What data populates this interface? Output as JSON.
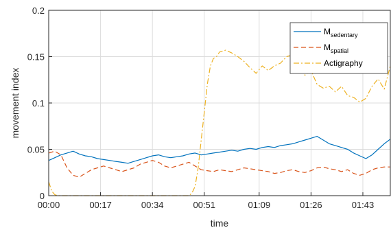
{
  "chart_data": {
    "type": "line",
    "xlabel": "time",
    "ylabel": "movement index",
    "x_ticks": [
      "00:00",
      "00:17",
      "00:34",
      "00:51",
      "01:09",
      "01:26",
      "01:43"
    ],
    "x_tick_minutes": [
      0,
      17,
      34,
      51,
      69,
      86,
      103
    ],
    "xlim_minutes": [
      0,
      112
    ],
    "ylim": [
      0,
      0.2
    ],
    "y_ticks": [
      0,
      0.05,
      0.1,
      0.15,
      0.2
    ],
    "y_tick_labels": [
      "0",
      "0.05",
      "0.1",
      "0.15",
      "0.2"
    ],
    "grid": true,
    "legend_position": "top-right",
    "colors": {
      "sedentary": "#0072BD",
      "spatial": "#D95319",
      "actigraphy": "#EDB120"
    },
    "series": [
      {
        "name": "M",
        "name_sub": "sedentary",
        "key": "sedentary",
        "style": "solid",
        "x": [
          0,
          2,
          4,
          6,
          8,
          10,
          12,
          14,
          16,
          18,
          20,
          22,
          24,
          26,
          28,
          30,
          32,
          34,
          36,
          38,
          40,
          42,
          44,
          46,
          48,
          50,
          52,
          54,
          56,
          58,
          60,
          62,
          64,
          66,
          68,
          70,
          72,
          74,
          76,
          78,
          80,
          82,
          84,
          86,
          88,
          90,
          92,
          94,
          96,
          98,
          100,
          102,
          104,
          106,
          108,
          110,
          112
        ],
        "y": [
          0.038,
          0.041,
          0.044,
          0.046,
          0.048,
          0.045,
          0.043,
          0.042,
          0.04,
          0.039,
          0.038,
          0.037,
          0.036,
          0.035,
          0.037,
          0.039,
          0.041,
          0.043,
          0.044,
          0.042,
          0.041,
          0.042,
          0.043,
          0.045,
          0.046,
          0.044,
          0.045,
          0.046,
          0.047,
          0.048,
          0.049,
          0.048,
          0.05,
          0.051,
          0.05,
          0.052,
          0.053,
          0.052,
          0.054,
          0.055,
          0.056,
          0.058,
          0.06,
          0.062,
          0.064,
          0.06,
          0.056,
          0.054,
          0.052,
          0.05,
          0.046,
          0.043,
          0.04,
          0.044,
          0.05,
          0.056,
          0.061
        ]
      },
      {
        "name": "M",
        "name_sub": "spatial",
        "key": "spatial",
        "style": "dashed",
        "x": [
          0,
          2,
          4,
          6,
          8,
          10,
          12,
          14,
          16,
          18,
          20,
          22,
          24,
          26,
          28,
          30,
          32,
          34,
          36,
          38,
          40,
          42,
          44,
          46,
          48,
          50,
          52,
          54,
          56,
          58,
          60,
          62,
          64,
          66,
          68,
          70,
          72,
          74,
          76,
          78,
          80,
          82,
          84,
          86,
          88,
          90,
          92,
          94,
          96,
          98,
          100,
          102,
          104,
          106,
          108,
          110,
          112
        ],
        "y": [
          0.046,
          0.048,
          0.044,
          0.03,
          0.022,
          0.02,
          0.024,
          0.028,
          0.03,
          0.032,
          0.03,
          0.028,
          0.026,
          0.028,
          0.03,
          0.034,
          0.036,
          0.038,
          0.036,
          0.032,
          0.03,
          0.032,
          0.034,
          0.036,
          0.032,
          0.028,
          0.027,
          0.026,
          0.028,
          0.027,
          0.026,
          0.028,
          0.03,
          0.029,
          0.028,
          0.027,
          0.026,
          0.024,
          0.025,
          0.027,
          0.028,
          0.026,
          0.025,
          0.027,
          0.03,
          0.031,
          0.029,
          0.028,
          0.026,
          0.028,
          0.024,
          0.022,
          0.024,
          0.028,
          0.03,
          0.031,
          0.031
        ]
      },
      {
        "name": "Actigraphy",
        "key": "actigraphy",
        "style": "dashdot",
        "x": [
          0,
          1,
          2,
          3,
          5,
          10,
          20,
          30,
          40,
          44,
          46,
          47,
          48,
          49,
          50,
          51,
          52,
          53,
          54,
          55,
          56,
          58,
          60,
          62,
          64,
          66,
          68,
          70,
          72,
          74,
          76,
          78,
          80,
          82,
          84,
          86,
          88,
          90,
          92,
          94,
          96,
          98,
          100,
          102,
          104,
          106,
          108,
          110,
          112
        ],
        "y": [
          0.015,
          0.005,
          0.001,
          0.0,
          0.0,
          0.0,
          0.0,
          0.0,
          0.0,
          0.0,
          0.0,
          0.003,
          0.01,
          0.03,
          0.06,
          0.09,
          0.12,
          0.14,
          0.148,
          0.15,
          0.155,
          0.157,
          0.154,
          0.15,
          0.145,
          0.138,
          0.132,
          0.14,
          0.135,
          0.14,
          0.143,
          0.15,
          0.152,
          0.14,
          0.13,
          0.135,
          0.12,
          0.116,
          0.118,
          0.112,
          0.118,
          0.108,
          0.106,
          0.101,
          0.105,
          0.118,
          0.126,
          0.115,
          0.14
        ]
      }
    ]
  }
}
